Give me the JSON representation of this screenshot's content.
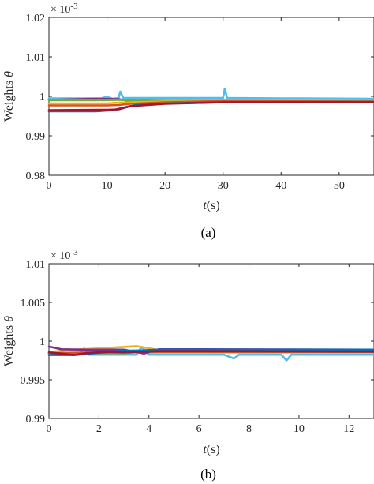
{
  "chart_data": [
    {
      "panel": "(a)",
      "type": "line",
      "exponent_label": "× 10",
      "exponent_power": "-3",
      "xlabel_italic": "t",
      "xlabel_rest": "(s)",
      "ylabel_text": "Weights ",
      "ylabel_symbol": "θ",
      "xlim": [
        0,
        56
      ],
      "ylim": [
        0.98,
        1.02
      ],
      "xticks": [
        0,
        10,
        20,
        30,
        40,
        50
      ],
      "xtick_labels": [
        "0",
        "10",
        "20",
        "30",
        "40",
        "50"
      ],
      "yticks": [
        0.98,
        0.99,
        1.0,
        1.01,
        1.02
      ],
      "ytick_labels": [
        "0.98",
        "0.99",
        "1",
        "1.01",
        "1.02"
      ],
      "series": [
        {
          "color": "#4ebeee",
          "x": [
            0,
            9,
            10,
            11,
            12,
            12.3,
            12.8,
            14,
            20,
            30,
            30.3,
            30.7,
            40,
            56
          ],
          "y": [
            0.9995,
            0.9995,
            0.9999,
            0.9994,
            0.9996,
            1.0012,
            0.9996,
            0.9996,
            0.9996,
            0.9996,
            1.0019,
            0.9996,
            0.9995,
            0.9994
          ]
        },
        {
          "color": "#7e2f8e",
          "x": [
            0,
            8,
            12,
            14,
            20,
            30,
            56
          ],
          "y": [
            0.9991,
            0.9994,
            0.9993,
            0.9988,
            0.9988,
            0.9988,
            0.9988
          ]
        },
        {
          "color": "#77ac30",
          "x": [
            0,
            8,
            12,
            14,
            20,
            30,
            56
          ],
          "y": [
            0.999,
            0.999,
            0.9991,
            0.999,
            0.9989,
            0.9989,
            0.9989
          ]
        },
        {
          "color": "#edb120",
          "x": [
            0,
            10,
            12,
            14,
            20,
            30,
            56
          ],
          "y": [
            0.9982,
            0.9982,
            0.9984,
            0.9985,
            0.9987,
            0.9988,
            0.9988
          ]
        },
        {
          "color": "#d95319",
          "x": [
            0,
            10,
            12,
            14,
            20,
            30,
            56
          ],
          "y": [
            0.9977,
            0.9977,
            0.9978,
            0.9981,
            0.9985,
            0.9988,
            0.9987
          ]
        },
        {
          "color": "#0072bd",
          "x": [
            0,
            8,
            11,
            13,
            15,
            20,
            30,
            56
          ],
          "y": [
            0.9962,
            0.9962,
            0.9965,
            0.9972,
            0.9978,
            0.9982,
            0.9985,
            0.9986
          ]
        },
        {
          "color": "#a2142f",
          "x": [
            0,
            10,
            12,
            14,
            20,
            30,
            56
          ],
          "y": [
            0.9965,
            0.9966,
            0.9967,
            0.9975,
            0.9981,
            0.9985,
            0.9985
          ]
        }
      ]
    },
    {
      "panel": "(b)",
      "type": "line",
      "exponent_label": "× 10",
      "exponent_power": "-3",
      "xlabel_italic": "t",
      "xlabel_rest": "(s)",
      "ylabel_text": "Weights ",
      "ylabel_symbol": "θ",
      "xlim": [
        0,
        13
      ],
      "ylim": [
        0.99,
        1.01
      ],
      "xticks": [
        0,
        2,
        4,
        6,
        8,
        10,
        12
      ],
      "xtick_labels": [
        "0",
        "2",
        "4",
        "6",
        "8",
        "10",
        "12"
      ],
      "yticks": [
        0.99,
        0.995,
        1.0,
        1.005,
        1.01
      ],
      "ytick_labels": [
        "0.99",
        "0.995",
        "1",
        "1.005",
        "1.01"
      ],
      "series": [
        {
          "color": "#4ebeee",
          "x": [
            0,
            1.2,
            1.4,
            1.6,
            3,
            3.5,
            3.7,
            4,
            6,
            7,
            7.4,
            7.6,
            9.3,
            9.5,
            9.7,
            13
          ],
          "y": [
            0.99825,
            0.99825,
            0.99905,
            0.99825,
            0.99825,
            0.99825,
            0.99925,
            0.99825,
            0.99825,
            0.99825,
            0.99775,
            0.99825,
            0.99825,
            0.9975,
            0.99825,
            0.99825
          ]
        },
        {
          "color": "#77ac30",
          "x": [
            0,
            3,
            3.5,
            6,
            13
          ],
          "y": [
            0.99845,
            0.99845,
            0.99855,
            0.99855,
            0.99855
          ]
        },
        {
          "color": "#d95319",
          "x": [
            0,
            2,
            3,
            3.5,
            4.2,
            6,
            13
          ],
          "y": [
            0.99845,
            0.99855,
            0.9987,
            0.99875,
            0.9986,
            0.9986,
            0.9986
          ]
        },
        {
          "color": "#edb120",
          "x": [
            0,
            1,
            2.5,
            3.5,
            4.3,
            6,
            13
          ],
          "y": [
            0.9986,
            0.9989,
            0.99915,
            0.99935,
            0.9989,
            0.9988,
            0.9988
          ]
        },
        {
          "color": "#7e2f8e",
          "x": [
            0,
            0.5,
            1.5,
            3,
            3.8,
            4.4,
            6,
            13
          ],
          "y": [
            0.9993,
            0.99895,
            0.9989,
            0.9989,
            0.9984,
            0.99895,
            0.99895,
            0.9989
          ]
        },
        {
          "color": "#0072bd",
          "x": [
            0,
            1,
            2,
            3,
            3.7,
            4.3,
            6,
            13
          ],
          "y": [
            0.9982,
            0.9982,
            0.9985,
            0.99875,
            0.9988,
            0.9989,
            0.9989,
            0.9989
          ]
        },
        {
          "color": "#a2142f",
          "x": [
            0,
            1,
            1.5,
            2.3,
            3,
            4.4,
            6,
            13
          ],
          "y": [
            0.99855,
            0.9982,
            0.99845,
            0.9986,
            0.99855,
            0.9987,
            0.9987,
            0.99865
          ]
        }
      ]
    }
  ]
}
